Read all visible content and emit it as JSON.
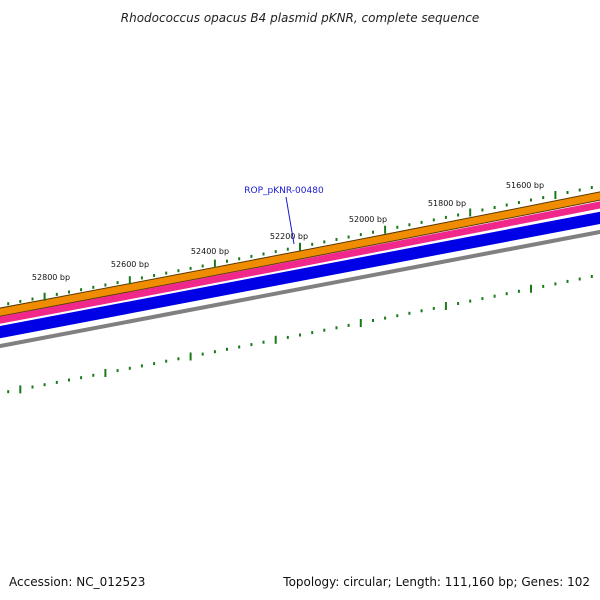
{
  "title": "Rhodococcus opacus B4 plasmid pKNR, complete sequence",
  "footer": {
    "accession": "Accession: NC_012523",
    "stats": "Topology: circular; Length: 111,160 bp; Genes: 102"
  },
  "gene_label": "ROP_pKNR-00480",
  "scale_ticks": [
    "51600 bp",
    "51800 bp",
    "52000 bp",
    "52200 bp",
    "52400 bp",
    "52600 bp",
    "52800 bp"
  ],
  "colors": {
    "orange_track": "#f08c00",
    "magenta_track": "#f0288c",
    "blue_track": "#0000e6",
    "gray_track": "#808080",
    "tick_green": "#1a7a1a",
    "gene_label": "#1a1ad0"
  }
}
